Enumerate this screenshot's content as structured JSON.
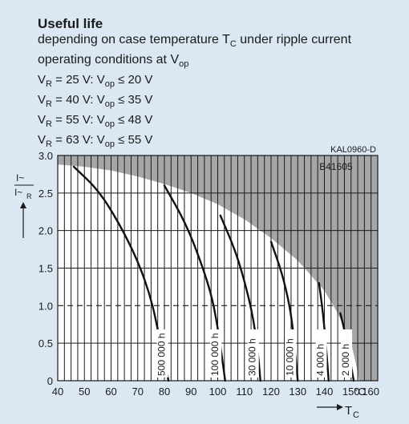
{
  "header": {
    "title": "Useful life",
    "subtitle_line1_a": "depending on case temperature T",
    "subtitle_line1_sub": "C",
    "subtitle_line1_b": " under ripple current",
    "subtitle_line2_a": "operating conditions at V",
    "subtitle_line2_sub": "op"
  },
  "conditions": [
    {
      "vr_sub": "R",
      "vr": " = 25 V: V",
      "vop_sub": "op",
      "limit": " ≤ 20 V"
    },
    {
      "vr_sub": "R",
      "vr": " = 40 V: V",
      "vop_sub": "op",
      "limit": " ≤ 35 V"
    },
    {
      "vr_sub": "R",
      "vr": " = 55 V: V",
      "vop_sub": "op",
      "limit": " ≤ 48 V"
    },
    {
      "vr_sub": "R",
      "vr": " = 63 V: V",
      "vop_sub": "op",
      "limit": " ≤ 55 V"
    }
  ],
  "chart_data": {
    "type": "line",
    "code1": "KAL0960-D",
    "code2": "B41605",
    "xlabel": "T",
    "xlabel_sub": "C",
    "xunit": "°C",
    "ylabel_num": "I~",
    "ylabel_den": "I~",
    "ylabel_den_sub": "R",
    "xlim": [
      40,
      160
    ],
    "ylim": [
      0,
      3.0
    ],
    "x_ticks": [
      "40",
      "50",
      "60",
      "70",
      "80",
      "90",
      "100",
      "110",
      "120",
      "130",
      "140",
      "150",
      "160"
    ],
    "y_ticks": [
      "0",
      "0.5",
      "1.0",
      "1.5",
      "2.0",
      "2.5",
      "3.0"
    ],
    "grid": true,
    "dashed_reference_y": 1.0,
    "boundary": [
      [
        40,
        2.88
      ],
      [
        50,
        2.85
      ],
      [
        60,
        2.8
      ],
      [
        70,
        2.72
      ],
      [
        80,
        2.62
      ],
      [
        90,
        2.5
      ],
      [
        100,
        2.35
      ],
      [
        110,
        2.15
      ],
      [
        120,
        1.9
      ],
      [
        130,
        1.6
      ],
      [
        140,
        1.2
      ],
      [
        145,
        0.9
      ],
      [
        150,
        0.5
      ],
      [
        152,
        0.2
      ],
      [
        153,
        0
      ]
    ],
    "series": [
      {
        "name": "500 000 h",
        "points": [
          [
            46,
            2.85
          ],
          [
            55,
            2.55
          ],
          [
            63,
            2.1
          ],
          [
            70,
            1.6
          ],
          [
            75,
            1.1
          ],
          [
            78,
            0.6
          ],
          [
            80.5,
            0.2
          ],
          [
            81.5,
            0
          ]
        ]
      },
      {
        "name": "100 000 h",
        "points": [
          [
            80,
            2.6
          ],
          [
            88,
            2.1
          ],
          [
            94,
            1.55
          ],
          [
            98,
            1.1
          ],
          [
            100.5,
            0.6
          ],
          [
            102,
            0.2
          ],
          [
            102.8,
            0
          ]
        ]
      },
      {
        "name": "30 000 h",
        "points": [
          [
            101,
            2.2
          ],
          [
            107,
            1.7
          ],
          [
            111,
            1.2
          ],
          [
            113.5,
            0.8
          ],
          [
            115.3,
            0.3
          ],
          [
            116,
            0
          ]
        ]
      },
      {
        "name": "10 000 h",
        "points": [
          [
            120,
            1.85
          ],
          [
            124,
            1.45
          ],
          [
            127,
            1.0
          ],
          [
            128.5,
            0.6
          ],
          [
            129.5,
            0.2
          ],
          [
            130,
            0
          ]
        ]
      },
      {
        "name": "4 000 h",
        "points": [
          [
            138,
            1.3
          ],
          [
            139.5,
            0.9
          ],
          [
            140.5,
            0.5
          ],
          [
            141.3,
            0.15
          ],
          [
            141.6,
            0
          ]
        ]
      },
      {
        "name": "2 000 h",
        "points": [
          [
            146,
            0.9
          ],
          [
            148,
            0.6
          ],
          [
            149.5,
            0.3
          ],
          [
            150.5,
            0.1
          ],
          [
            151,
            0
          ]
        ]
      }
    ],
    "series_label_x": [
      79,
      99,
      113,
      127,
      138.5,
      148
    ]
  }
}
